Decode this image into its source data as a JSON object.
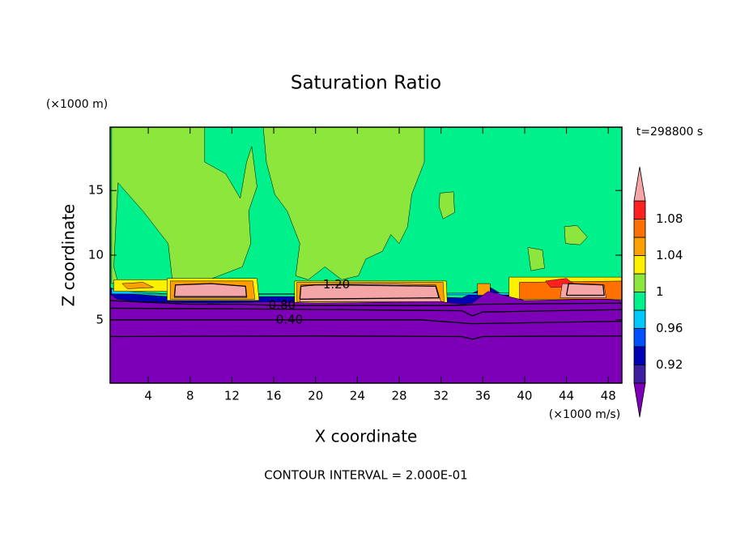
{
  "chart_data": {
    "type": "contour",
    "title": "Saturation Ratio",
    "x_label": "X coordinate",
    "y_label": "Z coordinate",
    "x_unit": "(×1000 m/s)",
    "y_unit": "(×1000 m)",
    "time_label": "t=298800 s",
    "footer": "CONTOUR INTERVAL = 2.000E-01",
    "xlim": [
      0.35,
      49.3
    ],
    "ylim": [
      0.1,
      19.9
    ],
    "xticks": [
      4,
      8,
      12,
      16,
      20,
      24,
      28,
      32,
      36,
      40,
      44,
      48
    ],
    "yticks": [
      5,
      10,
      15
    ],
    "colorbar": {
      "levels": [
        0.9,
        0.92,
        0.94,
        0.96,
        0.98,
        1.0,
        1.02,
        1.04,
        1.06,
        1.08,
        1.1
      ],
      "colors": [
        "#7d00b8",
        "#3c1ea0",
        "#0000b4",
        "#0050ff",
        "#00c8ff",
        "#00f08c",
        "#8ce63c",
        "#fff000",
        "#ffa000",
        "#ff7000",
        "#ff2020",
        "#f4a6a6"
      ],
      "ticks": [
        0.92,
        0.96,
        1,
        1.04,
        1.08
      ]
    },
    "regions": [
      {
        "value": 0.99,
        "points": [
          [
            0,
            0
          ],
          [
            50,
            0
          ],
          [
            50,
            20
          ],
          [
            0,
            20
          ]
        ]
      },
      {
        "value": 1.01,
        "points": [
          [
            0.5,
            19.9
          ],
          [
            9.4,
            19.9
          ],
          [
            9.4,
            17.2
          ],
          [
            11.4,
            16.3
          ],
          [
            12.8,
            14.4
          ],
          [
            13.4,
            17.2
          ],
          [
            13.9,
            18.4
          ],
          [
            14.4,
            15.3
          ],
          [
            13.6,
            13.4
          ],
          [
            13.8,
            10.9
          ],
          [
            13.0,
            9.1
          ],
          [
            9.8,
            8.1
          ],
          [
            6.3,
            8.1
          ],
          [
            5.9,
            10.9
          ],
          [
            3.5,
            13.4
          ],
          [
            1.1,
            15.6
          ],
          [
            0.7,
            9.1
          ],
          [
            1.1,
            7.9
          ],
          [
            0.5,
            7.8
          ]
        ]
      },
      {
        "value": 1.01,
        "points": [
          [
            15.0,
            19.9
          ],
          [
            30.4,
            19.9
          ],
          [
            30.4,
            17.2
          ],
          [
            29.2,
            14.7
          ],
          [
            28.8,
            12.2
          ],
          [
            28.0,
            10.9
          ],
          [
            27.2,
            11.6
          ],
          [
            26.4,
            10.3
          ],
          [
            24.8,
            9.7
          ],
          [
            24.1,
            8.4
          ],
          [
            22.5,
            8.1
          ],
          [
            20.9,
            9.1
          ],
          [
            19.3,
            8.1
          ],
          [
            18.1,
            8.4
          ],
          [
            18.5,
            10.9
          ],
          [
            17.3,
            13.4
          ],
          [
            16.1,
            14.7
          ],
          [
            15.3,
            17.2
          ]
        ]
      },
      {
        "value": 1.01,
        "points": [
          [
            31.9,
            14.8
          ],
          [
            33.2,
            14.9
          ],
          [
            33.3,
            13.3
          ],
          [
            32.2,
            12.8
          ],
          [
            31.8,
            13.8
          ]
        ]
      },
      {
        "value": 1.01,
        "points": [
          [
            43.8,
            12.2
          ],
          [
            45.0,
            12.3
          ],
          [
            46.0,
            11.4
          ],
          [
            45.3,
            10.8
          ],
          [
            43.9,
            10.9
          ]
        ]
      },
      {
        "value": 1.01,
        "points": [
          [
            40.3,
            10.6
          ],
          [
            41.7,
            10.4
          ],
          [
            41.9,
            9.0
          ],
          [
            40.6,
            8.8
          ]
        ]
      },
      {
        "value": 0.93,
        "points": [
          [
            0,
            7.6
          ],
          [
            2,
            7.0
          ],
          [
            6,
            6.8
          ],
          [
            30,
            6.8
          ],
          [
            34,
            6.7
          ],
          [
            36.5,
            7.6
          ],
          [
            38,
            6.9
          ],
          [
            50,
            7.0
          ],
          [
            50,
            6.0
          ],
          [
            0,
            6.0
          ]
        ]
      },
      {
        "value": 0.97,
        "points": [
          [
            0.5,
            7.4
          ],
          [
            2,
            7.2
          ],
          [
            6,
            7.0
          ],
          [
            50,
            7.1
          ],
          [
            50,
            6.9
          ],
          [
            0.5,
            7.0
          ]
        ]
      },
      {
        "value": 1.03,
        "points": [
          [
            0.7,
            8.1
          ],
          [
            6.3,
            8.1
          ],
          [
            6.3,
            7.2
          ],
          [
            0.7,
            7.2
          ]
        ]
      },
      {
        "value": 1.05,
        "points": [
          [
            1.5,
            7.8
          ],
          [
            3.5,
            7.9
          ],
          [
            4.5,
            7.5
          ],
          [
            2.0,
            7.4
          ]
        ]
      },
      {
        "value": 1.03,
        "points": [
          [
            5.8,
            8.2
          ],
          [
            14.4,
            8.2
          ],
          [
            14.6,
            6.5
          ],
          [
            5.8,
            6.5
          ]
        ]
      },
      {
        "value": 1.05,
        "points": [
          [
            6.1,
            8.0
          ],
          [
            14.0,
            8.0
          ],
          [
            14.2,
            6.6
          ],
          [
            6.1,
            6.6
          ]
        ]
      },
      {
        "value": 1.03,
        "points": [
          [
            18.0,
            8.0
          ],
          [
            32.5,
            8.0
          ],
          [
            32.6,
            6.3
          ],
          [
            18.0,
            6.3
          ]
        ]
      },
      {
        "value": 1.05,
        "points": [
          [
            18.2,
            7.9
          ],
          [
            32.2,
            7.9
          ],
          [
            32.3,
            6.4
          ],
          [
            18.2,
            6.4
          ]
        ]
      },
      {
        "value": 1.05,
        "points": [
          [
            35.5,
            7.8
          ],
          [
            36.7,
            7.8
          ],
          [
            36.7,
            6.9
          ],
          [
            35.5,
            6.9
          ]
        ]
      },
      {
        "value": 1.03,
        "points": [
          [
            38.5,
            8.3
          ],
          [
            50,
            8.3
          ],
          [
            50,
            6.4
          ],
          [
            38.5,
            6.4
          ]
        ]
      },
      {
        "value": 1.07,
        "points": [
          [
            39.5,
            7.9
          ],
          [
            49.5,
            8.0
          ],
          [
            49.5,
            6.6
          ],
          [
            39.5,
            6.6
          ]
        ]
      },
      {
        "value": 1.09,
        "points": [
          [
            42.0,
            8.0
          ],
          [
            44.0,
            8.2
          ],
          [
            45.0,
            7.6
          ],
          [
            42.5,
            7.5
          ]
        ]
      },
      {
        "value": 1.25,
        "points": [
          [
            6.5,
            6.7
          ],
          [
            6.6,
            7.7
          ],
          [
            10.0,
            7.8
          ],
          [
            13.3,
            7.6
          ],
          [
            13.4,
            6.7
          ]
        ]
      },
      {
        "value": 1.25,
        "points": [
          [
            18.5,
            6.4
          ],
          [
            18.6,
            7.7
          ],
          [
            25.0,
            7.8
          ],
          [
            31.5,
            7.7
          ],
          [
            32.0,
            6.4
          ]
        ]
      },
      {
        "value": 1.25,
        "points": [
          [
            43.4,
            6.7
          ],
          [
            43.6,
            7.8
          ],
          [
            47.6,
            7.7
          ],
          [
            47.8,
            6.7
          ]
        ]
      },
      {
        "value": 0.5,
        "points": [
          [
            0,
            0
          ],
          [
            50,
            0
          ],
          [
            50,
            6.5
          ],
          [
            47,
            6.6
          ],
          [
            40,
            6.5
          ],
          [
            36.5,
            7.2
          ],
          [
            35,
            6.3
          ],
          [
            34,
            6.2
          ],
          [
            32,
            6.4
          ],
          [
            20,
            6.3
          ],
          [
            16,
            6.4
          ],
          [
            10,
            6.3
          ],
          [
            3,
            6.4
          ],
          [
            1,
            6.6
          ],
          [
            0,
            7.2
          ]
        ]
      }
    ],
    "contour_lines": [
      {
        "level": 0.8,
        "label": "0.80",
        "points": [
          [
            0,
            6.5
          ],
          [
            8,
            6.2
          ],
          [
            13,
            6.2
          ],
          [
            16.8,
            6.1
          ],
          [
            33,
            6.1
          ],
          [
            36,
            6.2
          ],
          [
            50,
            6.3
          ]
        ]
      },
      {
        "level": 0.6,
        "points": [
          [
            0,
            5.9
          ],
          [
            20,
            5.8
          ],
          [
            34,
            5.7
          ],
          [
            35,
            5.3
          ],
          [
            36,
            5.6
          ],
          [
            50,
            5.8
          ]
        ]
      },
      {
        "level": 0.4,
        "label": "0.40",
        "points": [
          [
            0,
            5.0
          ],
          [
            10,
            5.0
          ],
          [
            15,
            5.0
          ],
          [
            17.5,
            5.0
          ],
          [
            30,
            5.0
          ],
          [
            35,
            4.7
          ],
          [
            50,
            4.9
          ]
        ]
      },
      {
        "level": 0.2,
        "points": [
          [
            0,
            3.7
          ],
          [
            20,
            3.75
          ],
          [
            34,
            3.7
          ],
          [
            35,
            3.5
          ],
          [
            36,
            3.7
          ],
          [
            50,
            3.75
          ]
        ]
      },
      {
        "level": 1.2,
        "label": "1.20",
        "points": [
          [
            18.5,
            6.6
          ],
          [
            18.6,
            7.6
          ],
          [
            20,
            7.7
          ],
          [
            21,
            7.7
          ],
          [
            22,
            7.7
          ],
          [
            31.5,
            7.6
          ],
          [
            31.8,
            6.7
          ],
          [
            18.5,
            6.6
          ]
        ]
      },
      {
        "level": 1.2,
        "points": [
          [
            6.5,
            6.8
          ],
          [
            6.6,
            7.7
          ],
          [
            10,
            7.8
          ],
          [
            13.3,
            7.6
          ],
          [
            13.4,
            6.8
          ],
          [
            6.5,
            6.8
          ]
        ]
      },
      {
        "level": 1.2,
        "points": [
          [
            44,
            6.9
          ],
          [
            44.2,
            7.8
          ],
          [
            47.5,
            7.7
          ],
          [
            47.6,
            6.9
          ],
          [
            44,
            6.9
          ]
        ]
      }
    ]
  }
}
